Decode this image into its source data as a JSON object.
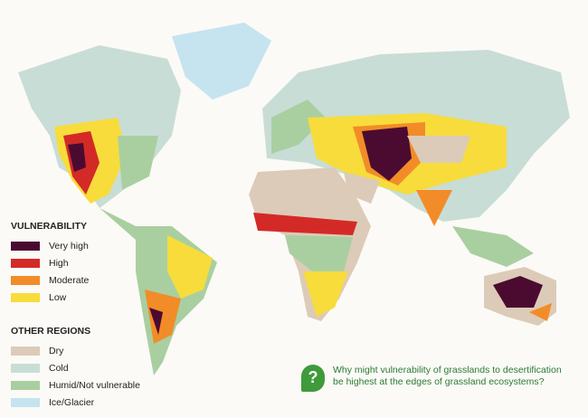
{
  "legend": {
    "vulnerability": {
      "title": "VULNERABILITY",
      "items": [
        {
          "label": "Very high",
          "color": "#4b0b30"
        },
        {
          "label": "High",
          "color": "#d42a27"
        },
        {
          "label": "Moderate",
          "color": "#f28c28"
        },
        {
          "label": "Low",
          "color": "#f7dc3c"
        }
      ]
    },
    "other_regions": {
      "title": "OTHER REGIONS",
      "items": [
        {
          "label": "Dry",
          "color": "#dccbb8"
        },
        {
          "label": "Cold",
          "color": "#c8ddd6"
        },
        {
          "label": "Humid/Not vulnerable",
          "color": "#a9cfa0"
        },
        {
          "label": "Ice/Glacier",
          "color": "#c6e3f0"
        }
      ]
    }
  },
  "question": {
    "icon": "?",
    "text": "Why might vulnerability of grasslands to desertification be highest at the edges of grassland ecosystems?"
  }
}
